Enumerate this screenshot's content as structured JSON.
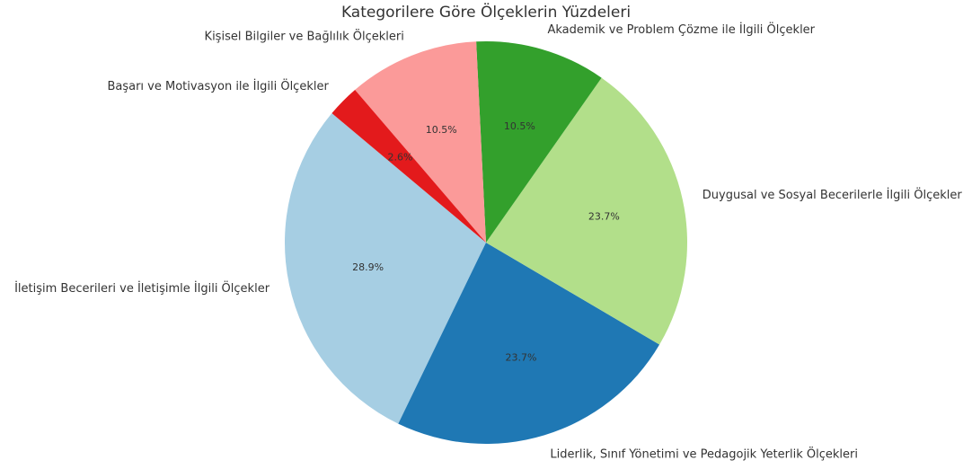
{
  "chart_data": {
    "type": "pie",
    "title": "Kategorilere Göre Ölçeklerin Yüzdeleri",
    "categories": [
      "İletişim Becerileri ve İletişimle İlgili Ölçekler",
      "Liderlik, Sınıf Yönetimi ve Pedagojik Yeterlik Ölçekleri",
      "Duygusal ve Sosyal Becerilerle İlgili Ölçekler",
      "Akademik ve Problem Çözme ile İlgili Ölçekler",
      "Kişisel Bilgiler ve Bağlılık Ölçekleri",
      "Başarı ve Motivasyon ile İlgili Ölçekler"
    ],
    "values": [
      28.9,
      23.7,
      23.7,
      10.5,
      10.5,
      2.6
    ],
    "value_labels": [
      "28.9%",
      "23.7%",
      "23.7%",
      "10.5%",
      "10.5%",
      "2.6%"
    ],
    "colors": [
      "#a6cee3",
      "#1f78b4",
      "#b2df8a",
      "#33a02c",
      "#fb9a99",
      "#e31a1c"
    ],
    "start_angle": 140
  }
}
